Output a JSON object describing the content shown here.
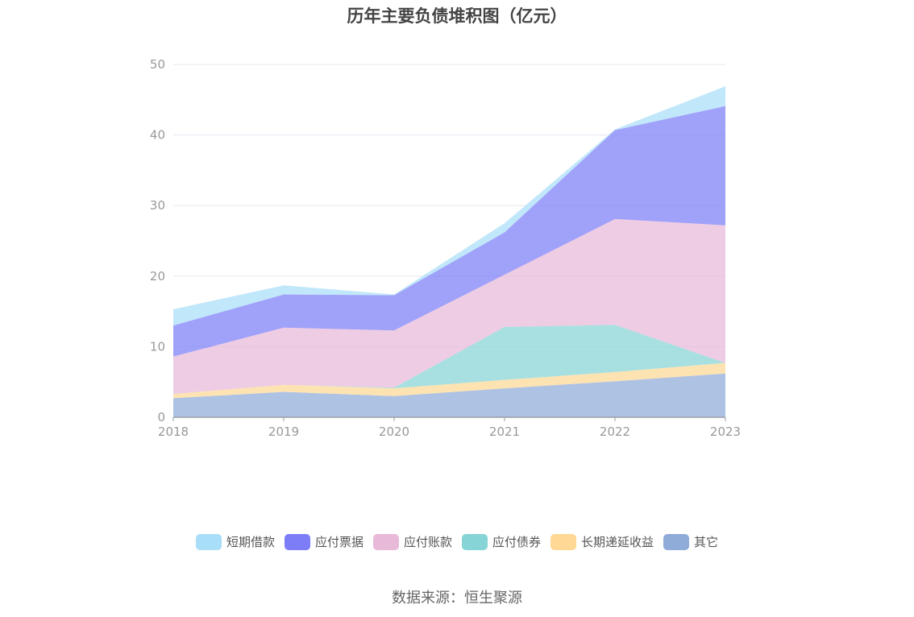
{
  "chart_data": {
    "type": "area",
    "stacked": true,
    "title": "历年主要负债堆积图（亿元）",
    "x": [
      "2018",
      "2019",
      "2020",
      "2021",
      "2022",
      "2023"
    ],
    "ylim": [
      0,
      50
    ],
    "yticks": [
      "0",
      "10",
      "20",
      "30",
      "40",
      "50"
    ],
    "grid": true,
    "legend_position": "bottom",
    "series": [
      {
        "name": "其它",
        "color": "#8fabd8",
        "values": [
          2.7,
          3.6,
          3.0,
          4.1,
          5.1,
          6.2
        ]
      },
      {
        "name": "长期递延收益",
        "color": "#fed894",
        "values": [
          0.6,
          1.0,
          1.1,
          1.2,
          1.3,
          1.5
        ]
      },
      {
        "name": "应付债券",
        "color": "#86d4d6",
        "values": [
          0,
          0,
          0.1,
          7.5,
          6.7,
          0
        ]
      },
      {
        "name": "应付账款",
        "color": "#e8b9d9",
        "values": [
          5.3,
          8.1,
          8.1,
          7.4,
          15.0,
          19.5
        ]
      },
      {
        "name": "应付票据",
        "color": "#7c7df7",
        "values": [
          4.4,
          4.7,
          5.0,
          6.0,
          12.6,
          16.9
        ]
      },
      {
        "name": "短期借款",
        "color": "#a9def8",
        "values": [
          2.3,
          1.3,
          0.1,
          1.3,
          0.1,
          2.8
        ]
      }
    ]
  },
  "legend_order": [
    "短期借款",
    "应付票据",
    "应付账款",
    "应付债券",
    "长期递延收益",
    "其它"
  ],
  "source_note": "数据来源：恒生聚源"
}
